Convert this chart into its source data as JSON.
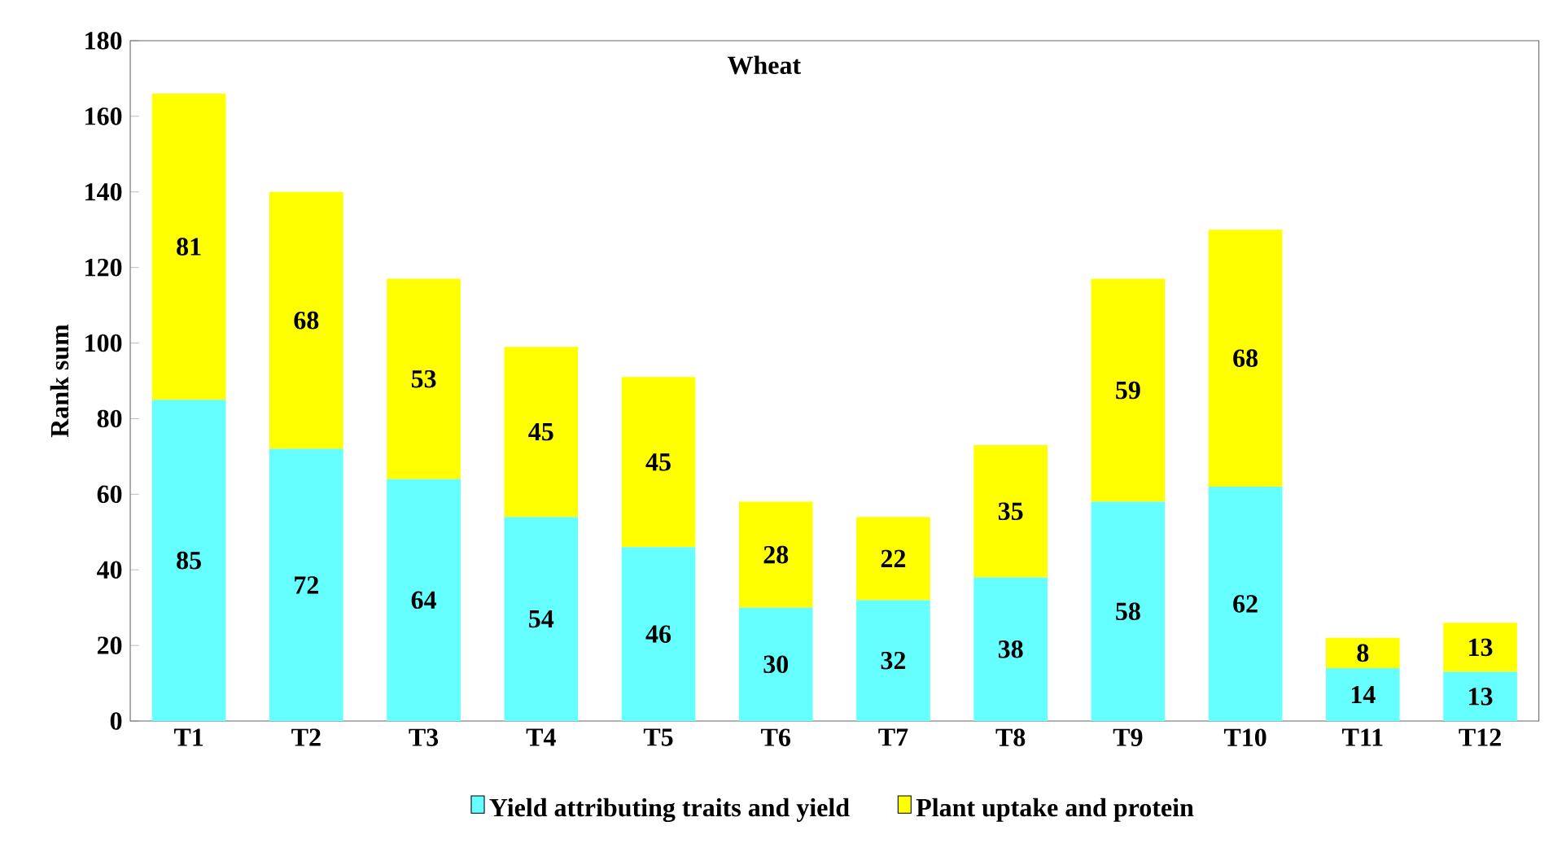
{
  "chart_data": {
    "type": "bar",
    "title": "Wheat",
    "ylabel": "Rank sum",
    "stacked": true,
    "categories": [
      "T1",
      "T2",
      "T3",
      "T4",
      "T5",
      "T6",
      "T7",
      "T8",
      "T9",
      "T10",
      "T11",
      "T12"
    ],
    "series": [
      {
        "name": "Yield attributing traits and yield",
        "color": "#66ffff",
        "values": [
          85,
          72,
          64,
          54,
          46,
          30,
          32,
          38,
          58,
          62,
          14,
          13
        ]
      },
      {
        "name": "Plant uptake and protein",
        "color": "#ffff00",
        "values": [
          81,
          68,
          53,
          45,
          45,
          28,
          22,
          35,
          59,
          68,
          8,
          13
        ]
      }
    ],
    "ylim": [
      0,
      180
    ],
    "yticks": [
      0,
      20,
      40,
      60,
      80,
      100,
      120,
      140,
      160,
      180
    ],
    "data_labels": true,
    "legend": "bottom",
    "grid": false
  }
}
